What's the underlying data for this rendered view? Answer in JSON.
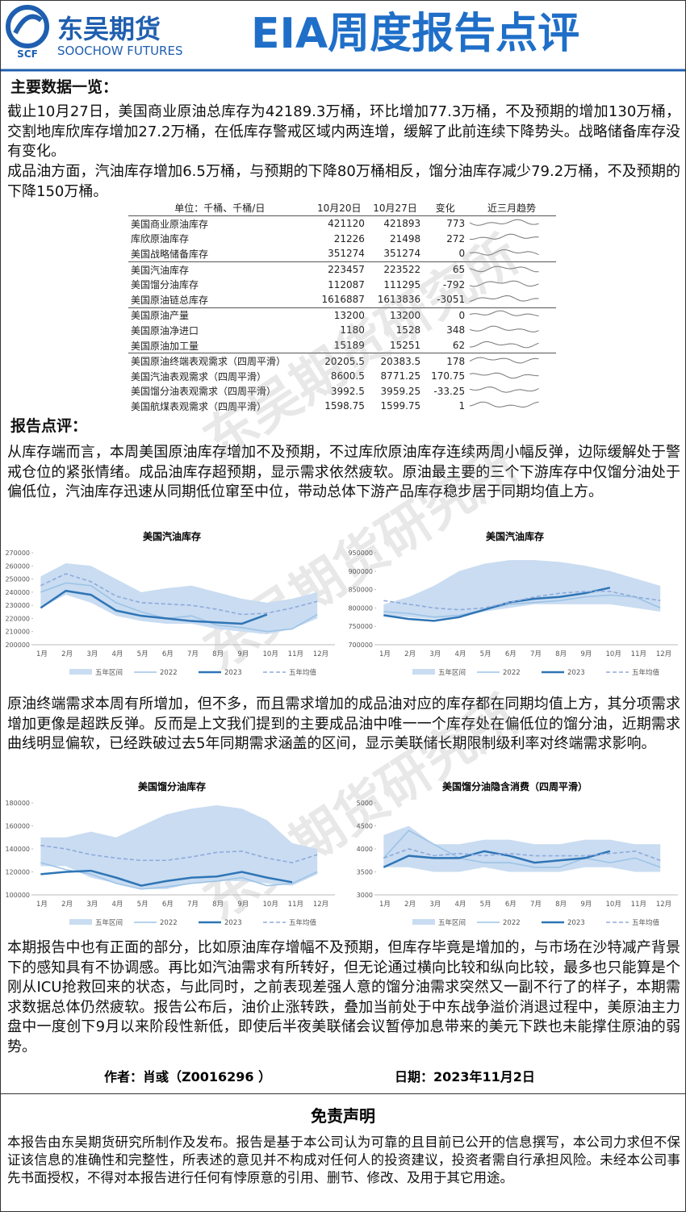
{
  "header": {
    "logo_cn": "东吴期货",
    "logo_en": "SOOCHOW FUTURES",
    "logo_mark": "SCF",
    "title": "EIA周度报告点评"
  },
  "watermark": "东吴期货研究所",
  "section1": {
    "heading": "主要数据一览：",
    "paragraphs": [
      "截止10月27日，美国商业原油总库存为42189.3万桶，环比增加77.3万桶，不及预期的增加130万桶，交割地库欣库存增加27.2万桶，在低库存警戒区域内两连增，缓解了此前连续下降势头。战略储备库存没有变化。",
      "成品油方面，汽油库存增加6.5万桶，与预期的下降80万桶相反，馏分油库存减少79.2万桶，不及预期的下降150万桶。"
    ]
  },
  "table": {
    "header": [
      "单位：千桶、千桶/日",
      "10月20日",
      "10月27日",
      "变化",
      "近三月趋势"
    ],
    "rows": [
      [
        "美国商业原油库存",
        421120,
        421893,
        773
      ],
      [
        "库欣原油库存",
        21226,
        21498,
        272
      ],
      [
        "美国战略储备库存",
        351274,
        351274,
        0
      ],
      [
        "美国汽油库存",
        223457,
        223522,
        65
      ],
      [
        "美国馏分油库存",
        112087,
        111295,
        -792
      ],
      [
        "美国原油链总库存",
        1616887,
        1613836,
        -3051
      ],
      [
        "美国原油产量",
        13200,
        13200,
        0
      ],
      [
        "美国原油净进口",
        1180,
        1528,
        348
      ],
      [
        "美国原油加工量",
        15189,
        15251,
        62
      ],
      [
        "美国原油终端表观需求（四周平滑）",
        20205.5,
        20383.5,
        178
      ],
      [
        "美国汽油表观需求（四周平滑）",
        8600.5,
        8771.25,
        170.75
      ],
      [
        "美国馏分油表观需求（四周平滑）",
        3992.5,
        3959.25,
        -33.25
      ],
      [
        "美国航煤表观需求（四周平滑）",
        1598.75,
        1599.75,
        1
      ]
    ]
  },
  "section2": {
    "heading": "报告点评：",
    "paragraphs": [
      "从库存端而言，本周美国原油库存增加不及预期，不过库欣原油库存连续两周小幅反弹，边际缓解处于警戒仓位的紧张情绪。成品油库存超预期，显示需求依然疲软。原油最主要的三个下游库存中仅馏分油处于偏低位，汽油库存迅速从同期低位窜至中位，带动总体下游产品库存稳步居于同期均值上方。",
      "原油终端需求本周有所增加，但不多，而且需求增加的成品油对应的库存都在同期均值上方，其分项需求增加更像是超跌反弹。反而是上文我们提到的主要成品油中唯一一个库存处在偏低位的馏分油，近期需求曲线明显偏软，已经跌破过去5年同期需求涵盖的区间，显示美联储长期限制级利率对终端需求影响。",
      "本期报告中也有正面的部分，比如原油库存增幅不及预期，但库存毕竟是增加的，与市场在沙特减产背景下的感知具有不协调感。再比如汽油需求有所转好，但无论通过横向比较和纵向比较，最多也只能算是个刚从ICU抢救回来的状态，与此同时，之前表现差强人意的馏分油需求突然又一副不行了的样子，本期需求数据总体仍然疲软。报告公布后，油价止涨转跌，叠加当前处于中东战争溢价消退过程中，美原油主力盘中一度创下9月以来阶段性新低，即使后半夜美联储会议暂停加息带来的美元下跌也未能撑住原油的弱势。"
    ]
  },
  "footer": {
    "author": "作者：肖彧（Z0016296 ）",
    "date": "日期：2023年11月2日",
    "disclaimer_title": "免责声明",
    "disclaimer": "本报告由东吴期货研究所制作及发布。报告是基于本公司认为可靠的且目前已公开的信息撰写，本公司力求但不保证该信息的准确性和完整性，所表述的意见并不构成对任何人的投资建议，投资者需自行承担风险。未经本公司事先书面授权，不得对本报告进行任何有悖原意的引用、删节、修改、及用于其它用途。"
  },
  "chart_data": [
    {
      "type": "line",
      "title": "美国汽油库存",
      "categories": [
        "1月",
        "2月",
        "3月",
        "4月",
        "5月",
        "6月",
        "7月",
        "8月",
        "9月",
        "10月",
        "11月",
        "12月"
      ],
      "ylim": [
        200000,
        270000
      ],
      "yticks": [
        200000,
        210000,
        220000,
        230000,
        240000,
        250000,
        260000,
        270000
      ],
      "series": [
        {
          "name": "五年区间",
          "color": "#c9dcf1",
          "low": [
            228000,
            238000,
            232000,
            222000,
            218000,
            216000,
            216000,
            212000,
            210000,
            208000,
            212000,
            220000
          ],
          "high": [
            252000,
            262000,
            260000,
            250000,
            240000,
            243000,
            245000,
            240000,
            235000,
            232000,
            235000,
            240000
          ]
        },
        {
          "name": "2022",
          "color": "#9dc3e6",
          "values": [
            240000,
            247000,
            245000,
            232000,
            225000,
            220000,
            222000,
            215000,
            213000,
            210000,
            212000,
            223000
          ]
        },
        {
          "name": "2023",
          "color": "#2e75b6",
          "values": [
            228000,
            241000,
            238000,
            226000,
            222000,
            220000,
            218000,
            217000,
            216000,
            223000,
            null,
            null
          ]
        },
        {
          "name": "五年均值",
          "color": "#8faadc",
          "dashed": true,
          "values": [
            245000,
            254000,
            248000,
            237000,
            232000,
            231000,
            230000,
            227000,
            223000,
            224000,
            228000,
            233000
          ]
        }
      ]
    },
    {
      "type": "line",
      "title": "美国汽油库存",
      "categories": [
        "1月",
        "2月",
        "3月",
        "4月",
        "5月",
        "6月",
        "7月",
        "8月",
        "9月",
        "10月",
        "11月",
        "12月"
      ],
      "ylim": [
        700000,
        950000
      ],
      "yticks": [
        700000,
        750000,
        800000,
        850000,
        900000,
        950000
      ],
      "series": [
        {
          "name": "五年区间",
          "color": "#c9dcf1",
          "low": [
            780000,
            775000,
            770000,
            775000,
            790000,
            800000,
            810000,
            810000,
            810000,
            810000,
            800000,
            790000
          ],
          "high": [
            810000,
            830000,
            860000,
            900000,
            920000,
            930000,
            930000,
            925000,
            915000,
            900000,
            880000,
            860000
          ]
        },
        {
          "name": "2022",
          "color": "#9dc3e6",
          "values": [
            790000,
            785000,
            775000,
            780000,
            795000,
            810000,
            815000,
            820000,
            830000,
            835000,
            830000,
            800000
          ]
        },
        {
          "name": "2023",
          "color": "#2e75b6",
          "values": [
            780000,
            770000,
            765000,
            775000,
            795000,
            815000,
            825000,
            830000,
            840000,
            855000,
            null,
            null
          ]
        },
        {
          "name": "五年均值",
          "color": "#8faadc",
          "dashed": true,
          "values": [
            820000,
            810000,
            800000,
            795000,
            800000,
            815000,
            830000,
            840000,
            845000,
            845000,
            830000,
            820000
          ]
        }
      ]
    },
    {
      "type": "line",
      "title": "美国馏分油库存",
      "categories": [
        "1月",
        "2月",
        "3月",
        "4月",
        "5月",
        "6月",
        "7月",
        "8月",
        "9月",
        "10月",
        "11月",
        "12月"
      ],
      "ylim": [
        100000,
        180000
      ],
      "yticks": [
        100000,
        120000,
        140000,
        160000,
        180000
      ],
      "series": [
        {
          "name": "五年区间",
          "color": "#c9dcf1",
          "low": [
            125000,
            125000,
            115000,
            110000,
            105000,
            105000,
            110000,
            112000,
            112000,
            110000,
            108000,
            118000
          ],
          "high": [
            150000,
            150000,
            155000,
            150000,
            160000,
            170000,
            175000,
            178000,
            175000,
            165000,
            145000,
            140000
          ]
        },
        {
          "name": "2022",
          "color": "#9dc3e6",
          "values": [
            128000,
            122000,
            118000,
            110000,
            105000,
            107000,
            110000,
            112000,
            115000,
            108000,
            110000,
            120000
          ]
        },
        {
          "name": "2023",
          "color": "#2e75b6",
          "values": [
            118000,
            120000,
            121000,
            115000,
            108000,
            112000,
            115000,
            116000,
            120000,
            115000,
            111000,
            null
          ]
        },
        {
          "name": "五年均值",
          "color": "#8faadc",
          "dashed": true,
          "values": [
            143000,
            140000,
            135000,
            132000,
            130000,
            130000,
            133000,
            137000,
            138000,
            132000,
            128000,
            135000
          ]
        }
      ]
    },
    {
      "type": "line",
      "title": "美国馏分油隐含消费（四周平滑）",
      "categories": [
        "1月",
        "2月",
        "3月",
        "4月",
        "5月",
        "6月",
        "7月",
        "8月",
        "9月",
        "10月",
        "11月",
        "12月"
      ],
      "ylim": [
        3000,
        5000
      ],
      "yticks": [
        3000,
        3500,
        4000,
        4500,
        5000
      ],
      "series": [
        {
          "name": "五年区间",
          "color": "#c9dcf1",
          "low": [
            3600,
            3600,
            3500,
            3500,
            3600,
            3500,
            3500,
            3500,
            3600,
            3600,
            3500,
            3500
          ],
          "high": [
            4300,
            4500,
            4100,
            4100,
            4200,
            4200,
            4100,
            4100,
            4200,
            4200,
            4100,
            4100
          ]
        },
        {
          "name": "2022",
          "color": "#9dc3e6",
          "values": [
            3800,
            4400,
            4100,
            3800,
            3700,
            3700,
            3600,
            3600,
            3800,
            3700,
            3800,
            3600
          ]
        },
        {
          "name": "2023",
          "color": "#2e75b6",
          "values": [
            3600,
            3850,
            3800,
            3800,
            3950,
            3850,
            3700,
            3750,
            3800,
            3950,
            null,
            null
          ]
        },
        {
          "name": "五年均值",
          "color": "#8faadc",
          "dashed": true,
          "values": [
            3800,
            4000,
            3850,
            3900,
            3850,
            3900,
            3850,
            3850,
            3850,
            3900,
            3950,
            3750
          ]
        }
      ]
    }
  ]
}
